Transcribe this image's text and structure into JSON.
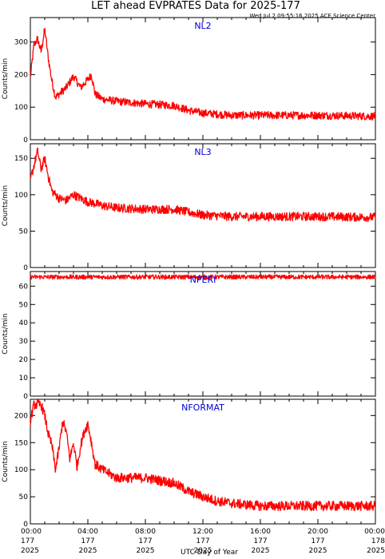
{
  "chart_data": {
    "type": "line",
    "title": "LET ahead EVPRATES Data for 2025-177",
    "timestamp": "Wed Jul  2 09:55:16 2025 ACE Science Center",
    "xlabel": "UTC Day of Year",
    "x_ticks": [
      {
        "hour": 0,
        "time": "00:00",
        "doy": "177",
        "year": "2025"
      },
      {
        "hour": 4,
        "time": "04:00",
        "doy": "177",
        "year": "2025"
      },
      {
        "hour": 8,
        "time": "08:00",
        "doy": "177",
        "year": "2025"
      },
      {
        "hour": 12,
        "time": "12:00",
        "doy": "177",
        "year": "2025"
      },
      {
        "hour": 16,
        "time": "16:00",
        "doy": "177",
        "year": "2025"
      },
      {
        "hour": 20,
        "time": "20:00",
        "doy": "177",
        "year": "2025"
      },
      {
        "hour": 24,
        "time": "00:00",
        "doy": "178",
        "year": "2025"
      }
    ],
    "xlim": [
      0,
      24
    ],
    "line_color": "#ff0000",
    "label_color": "#0000dd",
    "panels": [
      {
        "name": "NL2",
        "ylabel": "Counts/min",
        "ylim": [
          0,
          375
        ],
        "yticks": [
          0,
          100,
          200,
          300
        ],
        "hours": [
          0,
          0.25,
          0.5,
          0.75,
          1.0,
          1.25,
          1.5,
          1.75,
          2.0,
          2.5,
          3.0,
          3.5,
          4.0,
          4.25,
          4.5,
          5.0,
          6.0,
          8.0,
          10.0,
          11.0,
          12.0,
          14.0,
          16.0,
          20.0,
          24.0
        ],
        "values": [
          190,
          290,
          310,
          270,
          340,
          250,
          180,
          130,
          140,
          160,
          195,
          160,
          185,
          200,
          140,
          125,
          118,
          110,
          105,
          90,
          82,
          75,
          75,
          75,
          72
        ],
        "noise": 12
      },
      {
        "name": "NL3",
        "ylabel": "Counts/min",
        "ylim": [
          0,
          170
        ],
        "yticks": [
          0,
          50,
          100,
          150
        ],
        "hours": [
          0,
          0.25,
          0.5,
          0.75,
          1.0,
          1.25,
          1.5,
          2.0,
          2.5,
          3.0,
          3.5,
          4.0,
          4.5,
          5.0,
          6.0,
          8.0,
          10.0,
          11.0,
          12.0,
          14.0,
          16.0,
          20.0,
          24.0
        ],
        "values": [
          120,
          140,
          160,
          135,
          150,
          125,
          105,
          95,
          92,
          100,
          95,
          90,
          88,
          85,
          82,
          80,
          80,
          76,
          72,
          70,
          70,
          70,
          69
        ],
        "noise": 6
      },
      {
        "name": "NPERI",
        "ylabel": "Counts/min",
        "ylim": [
          0,
          68
        ],
        "yticks": [
          0,
          10,
          20,
          30,
          40,
          50,
          60
        ],
        "hours": [
          0,
          6,
          12,
          18,
          24
        ],
        "values": [
          65,
          65,
          65,
          65,
          65
        ],
        "noise": 1.2
      },
      {
        "name": "NFORMAT",
        "ylabel": "Counts/min",
        "ylim": [
          0,
          230
        ],
        "yticks": [
          0,
          50,
          100,
          150,
          200
        ],
        "hours": [
          0,
          0.25,
          0.75,
          1.0,
          1.25,
          1.5,
          1.75,
          2.0,
          2.25,
          2.5,
          2.75,
          3.0,
          3.25,
          3.5,
          3.75,
          4.0,
          4.25,
          4.5,
          5.0,
          6.0,
          8.0,
          10.0,
          11.0,
          12.0,
          13.0,
          14.0,
          16.0,
          20.0,
          24.0
        ],
        "values": [
          190,
          220,
          220,
          200,
          165,
          145,
          100,
          140,
          190,
          170,
          120,
          150,
          105,
          145,
          170,
          185,
          150,
          110,
          100,
          85,
          85,
          75,
          60,
          50,
          42,
          38,
          33,
          33,
          33
        ],
        "noise": 9
      }
    ]
  }
}
